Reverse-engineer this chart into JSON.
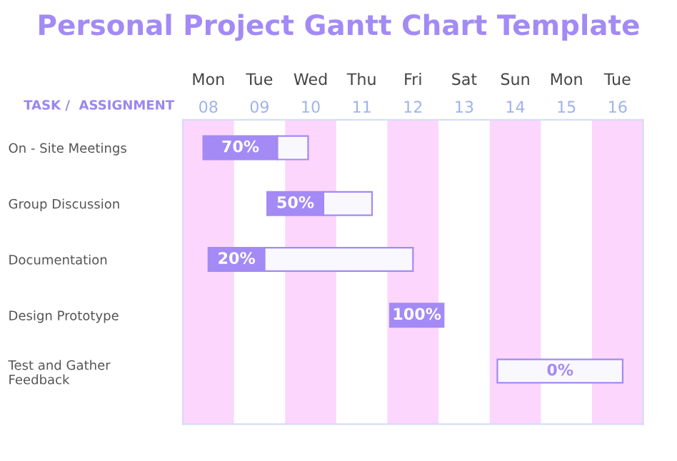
{
  "chart_data": {
    "type": "bar",
    "orientation": "horizontal",
    "title": "Personal Project Gantt Chart Template",
    "ylabel": "TASK /  ASSIGNMENT",
    "categories": [
      "On - Site Meetings",
      "Group Discussion",
      "Documentation",
      "Design Prototype",
      "Test and Gather\nFeedback"
    ],
    "series": [
      {
        "color": "#a38af5",
        "base": [
          7.9,
          9.15,
          8,
          11.55,
          null
        ],
        "values": [
          1.45,
          1.1,
          1.1,
          1.05,
          null
        ]
      },
      {
        "color": "#faf8ff",
        "base": [
          9.35,
          10.25,
          9.1,
          null,
          13.65
        ],
        "values": [
          0.6,
          0.95,
          2.9,
          null,
          2.45
        ]
      }
    ],
    "annotations": [
      "70%",
      "50%",
      "20%",
      "100%",
      "0%",
      "Mon",
      "Tue",
      "Wed",
      "Thu",
      "Fri",
      "Sat",
      "Sun",
      "Mon",
      "Tue"
    ],
    "xlim": [
      7.5,
      16.5
    ],
    "xticks": [
      {
        "value": 8,
        "label": "08"
      },
      {
        "value": 9,
        "label": "09"
      },
      10,
      11,
      12,
      13,
      14,
      15,
      16
    ],
    "bands": [
      {
        "axis": "x",
        "from": 7.5,
        "to": 8.5,
        "color": "#fcd6fc"
      },
      {
        "axis": "x",
        "from": 9.5,
        "to": 10.5,
        "color": "#fcd6fc"
      },
      {
        "axis": "x",
        "from": 11.5,
        "to": 12.5,
        "color": "#fcd6fc"
      },
      {
        "axis": "x",
        "from": 13.5,
        "to": 14.5,
        "color": "#fcd6fc"
      },
      {
        "axis": "x",
        "from": 15.5,
        "to": 16.5,
        "color": "#fcd6fc"
      }
    ],
    "grid": false,
    "legend": false
  }
}
